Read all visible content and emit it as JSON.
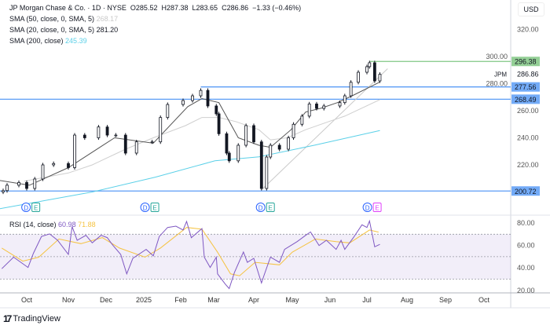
{
  "header": {
    "symbol_line": "JP Morgan Chase & Co. · 1D · NYSE",
    "open": "O285.52",
    "high": "H287.38",
    "low": "L283.65",
    "close": "C286.86",
    "change": "−1.33 (−0.46%)"
  },
  "indicators": [
    {
      "label": "SMA (50, close, 0, SMA, 5)",
      "value": "268.17",
      "color": "#c9c9c9"
    },
    {
      "label": "SMA (20, close, 0, SMA, 5)",
      "value": "281.20",
      "color": "#555555"
    },
    {
      "label": "SMA (200, close)",
      "value": "245.39",
      "color": "#5bd0e8"
    }
  ],
  "rsi_legend": {
    "label": "RSI (14, close)",
    "value": "60.98",
    "ma_value": "71.88",
    "color": "#7e57c2",
    "ma_color": "#f5c342"
  },
  "currency": "USD",
  "symbol_tag": "JPM",
  "brand": "TradingView",
  "chart_data": {
    "type": "candlestick",
    "price_axis": {
      "ticks": [
        "320.00",
        "300.00",
        "280.00",
        "260.00",
        "240.00",
        "220.00"
      ],
      "range": [
        182,
        330
      ]
    },
    "time_axis": {
      "ticks": [
        "Oct",
        "Nov",
        "Dec",
        "2025",
        "Feb",
        "Mar",
        "Apr",
        "May",
        "Jun",
        "Jul",
        "Aug",
        "Sep",
        "Oct"
      ]
    },
    "last_price": {
      "label": "286.86",
      "value": 286.86
    },
    "levels": [
      {
        "label": "296.38",
        "value": 296.38,
        "color": "#81c784",
        "from": "2025-07-03"
      },
      {
        "label": "277.56",
        "value": 277.56,
        "color": "#5b9cf6",
        "from": "2025-02-18"
      },
      {
        "label": "268.49",
        "value": 268.49,
        "color": "#5b9cf6",
        "from": "2024-09-01"
      },
      {
        "label": "200.72",
        "value": 200.72,
        "color": "#5b9cf6",
        "from": "2024-09-01"
      }
    ],
    "trendline": {
      "from": [
        "2025-04-07",
        201.5
      ],
      "to": [
        "2025-07-17",
        291
      ],
      "color": "#c9c9c9"
    },
    "closes": [
      [
        "2024-09-13",
        201
      ],
      [
        "2024-09-16",
        205
      ],
      [
        "2024-09-25",
        207
      ],
      [
        "2024-10-01",
        202.6
      ],
      [
        "2024-10-07",
        209.6
      ],
      [
        "2024-10-13",
        220
      ],
      [
        "2024-10-21",
        221
      ],
      [
        "2024-11-01",
        218
      ],
      [
        "2024-11-06",
        242
      ],
      [
        "2024-11-14",
        240
      ],
      [
        "2024-11-25",
        248
      ],
      [
        "2024-12-02",
        242
      ],
      [
        "2024-12-09",
        242
      ],
      [
        "2024-12-17",
        228.7
      ],
      [
        "2024-12-26",
        237
      ],
      [
        "2025-01-08",
        237
      ],
      [
        "2025-01-15",
        255
      ],
      [
        "2025-01-21",
        264.6
      ],
      [
        "2025-02-03",
        267.5
      ],
      [
        "2025-02-11",
        271
      ],
      [
        "2025-02-18",
        275
      ],
      [
        "2025-02-24",
        263.5
      ],
      [
        "2025-03-03",
        257.7
      ],
      [
        "2025-03-05",
        243
      ],
      [
        "2025-03-11",
        228.7
      ],
      [
        "2025-03-13",
        223
      ],
      [
        "2025-03-20",
        234.5
      ],
      [
        "2025-03-26",
        249
      ],
      [
        "2025-04-01",
        237
      ],
      [
        "2025-04-07",
        202.6
      ],
      [
        "2025-04-11",
        225.8
      ],
      [
        "2025-04-14",
        234.5
      ],
      [
        "2025-04-21",
        231.6
      ],
      [
        "2025-04-28",
        240
      ],
      [
        "2025-05-02",
        250
      ],
      [
        "2025-05-09",
        256
      ],
      [
        "2025-05-15",
        265
      ],
      [
        "2025-05-21",
        261.7
      ],
      [
        "2025-05-27",
        263.5
      ],
      [
        "2025-06-09",
        266
      ],
      [
        "2025-06-13",
        271
      ],
      [
        "2025-06-18",
        281
      ],
      [
        "2025-06-24",
        288.4
      ],
      [
        "2025-07-01",
        292.5
      ],
      [
        "2025-07-03",
        295.4
      ],
      [
        "2025-07-07",
        282
      ],
      [
        "2025-07-11",
        286.86
      ]
    ],
    "sma20": [
      [
        "2024-09-01",
        210
      ],
      [
        "2024-10-03",
        205
      ],
      [
        "2024-11-01",
        218
      ],
      [
        "2024-12-08",
        240
      ],
      [
        "2025-01-09",
        236
      ],
      [
        "2025-02-07",
        263
      ],
      [
        "2025-02-19",
        269
      ],
      [
        "2025-03-05",
        266
      ],
      [
        "2025-03-20",
        240
      ],
      [
        "2025-04-05",
        234.5
      ],
      [
        "2025-04-14",
        233
      ],
      [
        "2025-04-30",
        246
      ],
      [
        "2025-05-12",
        259
      ],
      [
        "2025-05-25",
        262
      ],
      [
        "2025-06-07",
        266
      ],
      [
        "2025-06-19",
        271
      ],
      [
        "2025-07-11",
        281.2
      ]
    ],
    "sma50": [
      [
        "2024-09-29",
        208
      ],
      [
        "2024-11-01",
        214
      ],
      [
        "2024-11-20",
        220
      ],
      [
        "2024-12-17",
        231.6
      ],
      [
        "2025-01-09",
        240
      ],
      [
        "2025-02-05",
        249
      ],
      [
        "2025-02-19",
        255
      ],
      [
        "2025-03-05",
        255
      ],
      [
        "2025-03-18",
        252
      ],
      [
        "2025-04-05",
        246
      ],
      [
        "2025-04-14",
        238.5
      ],
      [
        "2025-04-27",
        240
      ],
      [
        "2025-05-12",
        246
      ],
      [
        "2025-05-31",
        252
      ],
      [
        "2025-06-13",
        256
      ],
      [
        "2025-07-11",
        268.17
      ]
    ],
    "sma200": [
      [
        "2024-09-01",
        186
      ],
      [
        "2024-11-20",
        200
      ],
      [
        "2025-01-11",
        211
      ],
      [
        "2025-03-02",
        223
      ],
      [
        "2025-04-05",
        226
      ],
      [
        "2025-05-19",
        234.5
      ],
      [
        "2025-07-11",
        245.39
      ]
    ],
    "events": [
      {
        "date": "2024-10-04",
        "labels": [
          "D",
          "E"
        ],
        "e_color": "#26a69a"
      },
      {
        "date": "2025-01-06",
        "labels": [
          "D",
          "E"
        ],
        "e_color": "#26a69a"
      },
      {
        "date": "2025-04-10",
        "labels": [
          "D",
          "E"
        ],
        "e_color": "#26a69a"
      },
      {
        "date": "2025-07-05",
        "labels": [
          "D",
          "E"
        ],
        "e_color": "#e040fb"
      }
    ],
    "rsi": {
      "axis_ticks": [
        "80.00",
        "60.00",
        "40.00",
        "20.00"
      ],
      "bands": [
        70,
        50,
        30
      ],
      "values": [
        [
          "2024-09-12",
          39.3
        ],
        [
          "2024-09-21",
          49.6
        ],
        [
          "2024-10-02",
          40.4
        ],
        [
          "2024-10-06",
          53
        ],
        [
          "2024-10-12",
          68
        ],
        [
          "2024-10-18",
          70.3
        ],
        [
          "2024-10-24",
          64.6
        ],
        [
          "2024-11-01",
          52
        ],
        [
          "2024-11-04",
          76.8
        ],
        [
          "2024-11-08",
          64.6
        ],
        [
          "2024-11-15",
          69
        ],
        [
          "2024-11-20",
          62.3
        ],
        [
          "2024-11-27",
          69
        ],
        [
          "2024-12-02",
          67
        ],
        [
          "2024-12-06",
          61
        ],
        [
          "2024-12-13",
          52
        ],
        [
          "2024-12-18",
          34.7
        ],
        [
          "2024-12-23",
          48.5
        ],
        [
          "2025-01-03",
          56.5
        ],
        [
          "2025-01-09",
          50.8
        ],
        [
          "2025-01-14",
          68
        ],
        [
          "2025-01-21",
          76
        ],
        [
          "2025-01-28",
          77.2
        ],
        [
          "2025-02-03",
          73.8
        ],
        [
          "2025-02-06",
          81.4
        ],
        [
          "2025-02-10",
          66.9
        ],
        [
          "2025-02-19",
          75
        ],
        [
          "2025-02-21",
          49.6
        ],
        [
          "2025-02-26",
          40.4
        ],
        [
          "2025-03-03",
          49.6
        ],
        [
          "2025-03-04",
          34.7
        ],
        [
          "2025-03-10",
          25.5
        ],
        [
          "2025-03-13",
          21.6
        ],
        [
          "2025-03-17",
          35.8
        ],
        [
          "2025-03-24",
          54.2
        ],
        [
          "2025-03-27",
          45
        ],
        [
          "2025-04-01",
          48.5
        ],
        [
          "2025-04-07",
          26.6
        ],
        [
          "2025-04-09",
          33.5
        ],
        [
          "2025-04-14",
          49.6
        ],
        [
          "2025-04-21",
          45
        ],
        [
          "2025-04-25",
          56.5
        ],
        [
          "2025-05-05",
          63.4
        ],
        [
          "2025-05-12",
          69
        ],
        [
          "2025-05-16",
          72
        ],
        [
          "2025-05-23",
          60
        ],
        [
          "2025-05-29",
          64.6
        ],
        [
          "2025-06-06",
          56.5
        ],
        [
          "2025-06-10",
          64.6
        ],
        [
          "2025-06-13",
          56.5
        ],
        [
          "2025-06-20",
          67
        ],
        [
          "2025-06-27",
          78.4
        ],
        [
          "2025-07-01",
          76
        ],
        [
          "2025-07-03",
          81.8
        ],
        [
          "2025-07-07",
          58.8
        ],
        [
          "2025-07-11",
          60.98
        ]
      ],
      "ma": [
        [
          "2024-09-12",
          57.7
        ],
        [
          "2024-09-28",
          46
        ],
        [
          "2024-10-10",
          49.6
        ],
        [
          "2024-10-25",
          65.7
        ],
        [
          "2024-11-11",
          61.6
        ],
        [
          "2024-11-28",
          67
        ],
        [
          "2024-12-12",
          57.7
        ],
        [
          "2025-01-02",
          49.6
        ],
        [
          "2025-01-15",
          57.7
        ],
        [
          "2025-02-06",
          76
        ],
        [
          "2025-02-19",
          74.5
        ],
        [
          "2025-03-04",
          54
        ],
        [
          "2025-03-14",
          34.7
        ],
        [
          "2025-03-21",
          33
        ],
        [
          "2025-04-02",
          45
        ],
        [
          "2025-04-21",
          42.7
        ],
        [
          "2025-05-01",
          54
        ],
        [
          "2025-05-20",
          65.7
        ],
        [
          "2025-06-06",
          63.4
        ],
        [
          "2025-06-17",
          62.3
        ],
        [
          "2025-07-03",
          73.8
        ],
        [
          "2025-07-10",
          71.88
        ]
      ]
    }
  }
}
